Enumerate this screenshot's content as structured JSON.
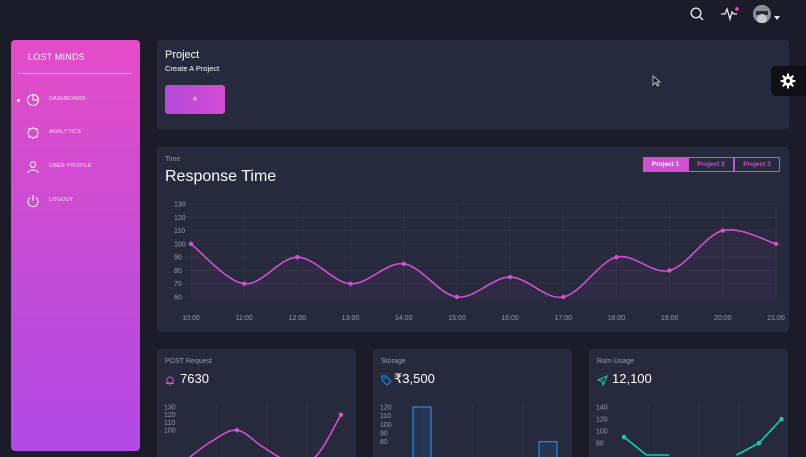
{
  "topbar": {
    "icons": [
      "search-icon",
      "activity-icon",
      "avatar",
      "chevron-down-icon"
    ],
    "notification_color": "#e14eca"
  },
  "sidebar": {
    "brand": "LOST MINDS",
    "items": [
      {
        "label": "DASHBOARD",
        "icon": "dashboard-icon",
        "active": true
      },
      {
        "label": "ANALYTICS",
        "icon": "analytics-icon",
        "active": false
      },
      {
        "label": "USER PROFILE",
        "icon": "user-icon",
        "active": false
      },
      {
        "label": "LOGOUT",
        "icon": "power-icon",
        "active": false
      }
    ]
  },
  "project": {
    "title": "Project",
    "subtitle": "Create A Project",
    "add_label": "+"
  },
  "response": {
    "category": "Time",
    "title": "Response Time",
    "tabs": [
      "Project 1",
      "Project 2",
      "Project 3"
    ],
    "active_tab": 0
  },
  "post": {
    "category": "POST Request",
    "value": "7630",
    "icon": "bell-icon"
  },
  "storage": {
    "category": "Storage",
    "value": "₹3,500",
    "icon": "tag-icon"
  },
  "ram": {
    "category": "Ram Usage",
    "value": "12,100",
    "icon": "send-icon"
  },
  "colors": {
    "accent": "#d14fd0",
    "teal": "#00d6b4",
    "blue": "#1f8ef1",
    "card_bg": "#27293d",
    "page_bg": "#1b1b29"
  },
  "chart_data": [
    {
      "type": "line",
      "title": "Response Time",
      "x": [
        "10:00",
        "11:00",
        "12:00",
        "13:00",
        "14:00",
        "15:00",
        "16:00",
        "17:00",
        "18:00",
        "19:00",
        "20:00",
        "21:00"
      ],
      "series": [
        {
          "values": [
            100,
            70,
            90,
            70,
            85,
            60,
            75,
            60,
            90,
            80,
            110,
            100
          ]
        }
      ],
      "yticks": [
        60,
        70,
        80,
        90,
        100,
        110,
        120,
        130
      ],
      "ylim": [
        60,
        130
      ],
      "grid": true
    },
    {
      "type": "line",
      "title": "POST Request",
      "yticks": [
        100,
        110,
        120,
        130
      ],
      "ylim": [
        60,
        130
      ],
      "series": [
        {
          "values": [
            60,
            85,
            100,
            78,
            60,
            65,
            120
          ]
        }
      ]
    },
    {
      "type": "bar",
      "title": "Storage",
      "yticks": [
        80,
        90,
        100,
        110,
        120
      ],
      "ylim": [
        60,
        120
      ],
      "values": [
        120,
        60,
        60,
        60,
        60,
        60,
        60,
        60,
        60,
        80
      ]
    },
    {
      "type": "line",
      "title": "Ram Usage",
      "yticks": [
        80,
        100,
        120,
        140
      ],
      "ylim": [
        50,
        140
      ],
      "series": [
        {
          "values": [
            90,
            60,
            60,
            60,
            60,
            60,
            80,
            120
          ]
        }
      ]
    }
  ]
}
